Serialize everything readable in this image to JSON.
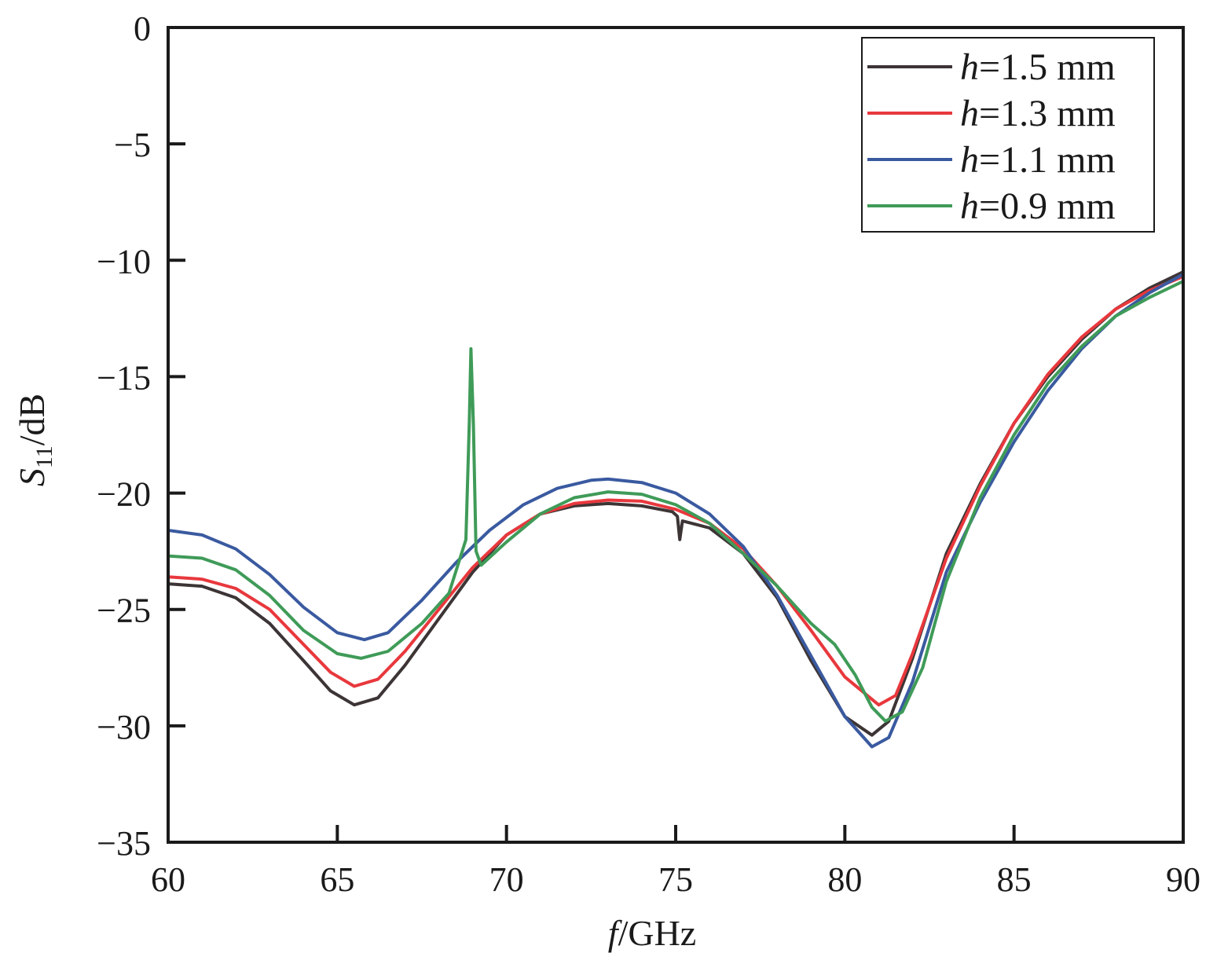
{
  "chart_data": {
    "type": "line",
    "xlabel": {
      "italic": "f",
      "rest": "/GHz"
    },
    "ylabel": {
      "italic": "S",
      "sub": "11",
      "rest": "/dB"
    },
    "xlim": [
      60,
      90
    ],
    "ylim": [
      -35,
      0
    ],
    "xticks": [
      "60",
      "65",
      "70",
      "75",
      "80",
      "85",
      "90"
    ],
    "yticks": [
      "0",
      "−5",
      "−10",
      "−15",
      "−20",
      "−25",
      "−30",
      "−35"
    ],
    "legend_position": "top-right",
    "grid": false,
    "series": [
      {
        "name": "h=1.5 mm",
        "legend_italic": "h",
        "legend_rest": "=1.5 mm",
        "color": "#3d3535",
        "points": [
          [
            60,
            -23.9
          ],
          [
            61,
            -24.0
          ],
          [
            62,
            -24.5
          ],
          [
            63,
            -25.6
          ],
          [
            64,
            -27.2
          ],
          [
            64.8,
            -28.5
          ],
          [
            65.5,
            -29.1
          ],
          [
            66.2,
            -28.8
          ],
          [
            67,
            -27.4
          ],
          [
            68,
            -25.4
          ],
          [
            69,
            -23.4
          ],
          [
            70,
            -21.8
          ],
          [
            71,
            -20.9
          ],
          [
            72,
            -20.55
          ],
          [
            73,
            -20.45
          ],
          [
            74,
            -20.55
          ],
          [
            74.9,
            -20.8
          ],
          [
            75.05,
            -21.0
          ],
          [
            75.12,
            -22.0
          ],
          [
            75.2,
            -21.2
          ],
          [
            76,
            -21.5
          ],
          [
            77,
            -22.6
          ],
          [
            78,
            -24.5
          ],
          [
            79,
            -27.2
          ],
          [
            80,
            -29.6
          ],
          [
            80.8,
            -30.4
          ],
          [
            81.3,
            -29.8
          ],
          [
            82,
            -27.1
          ],
          [
            83,
            -22.6
          ],
          [
            84,
            -19.6
          ],
          [
            85,
            -17.0
          ],
          [
            86,
            -15.0
          ],
          [
            87,
            -13.4
          ],
          [
            88,
            -12.1
          ],
          [
            89,
            -11.2
          ],
          [
            90,
            -10.5
          ]
        ]
      },
      {
        "name": "h=1.3 mm",
        "legend_italic": "h",
        "legend_rest": "=1.3 mm",
        "color": "#e8383d",
        "points": [
          [
            60,
            -23.6
          ],
          [
            61,
            -23.7
          ],
          [
            62,
            -24.1
          ],
          [
            63,
            -25.0
          ],
          [
            64,
            -26.5
          ],
          [
            64.8,
            -27.7
          ],
          [
            65.5,
            -28.3
          ],
          [
            66.2,
            -28.0
          ],
          [
            67,
            -26.8
          ],
          [
            68,
            -25.0
          ],
          [
            69,
            -23.2
          ],
          [
            70,
            -21.8
          ],
          [
            71,
            -20.9
          ],
          [
            72,
            -20.45
          ],
          [
            73,
            -20.3
          ],
          [
            74,
            -20.35
          ],
          [
            75,
            -20.7
          ],
          [
            76,
            -21.3
          ],
          [
            77,
            -22.4
          ],
          [
            78,
            -24.0
          ],
          [
            79,
            -25.9
          ],
          [
            80,
            -27.9
          ],
          [
            81,
            -29.1
          ],
          [
            81.5,
            -28.7
          ],
          [
            82,
            -26.9
          ],
          [
            83,
            -22.8
          ],
          [
            84,
            -19.7
          ],
          [
            85,
            -17.0
          ],
          [
            86,
            -14.9
          ],
          [
            87,
            -13.3
          ],
          [
            88,
            -12.1
          ],
          [
            89,
            -11.3
          ],
          [
            90,
            -10.7
          ]
        ]
      },
      {
        "name": "h=1.1 mm",
        "legend_italic": "h",
        "legend_rest": "=1.1 mm",
        "color": "#3a5aa0",
        "points": [
          [
            60,
            -21.6
          ],
          [
            61,
            -21.8
          ],
          [
            62,
            -22.4
          ],
          [
            63,
            -23.5
          ],
          [
            64,
            -24.9
          ],
          [
            65,
            -26.0
          ],
          [
            65.8,
            -26.3
          ],
          [
            66.5,
            -26.0
          ],
          [
            67.5,
            -24.6
          ],
          [
            68.5,
            -23.0
          ],
          [
            69.5,
            -21.6
          ],
          [
            70.5,
            -20.5
          ],
          [
            71.5,
            -19.8
          ],
          [
            72.5,
            -19.45
          ],
          [
            73,
            -19.4
          ],
          [
            74,
            -19.55
          ],
          [
            75,
            -20.0
          ],
          [
            76,
            -20.9
          ],
          [
            77,
            -22.3
          ],
          [
            78,
            -24.4
          ],
          [
            79,
            -27.0
          ],
          [
            80,
            -29.6
          ],
          [
            80.8,
            -30.9
          ],
          [
            81.3,
            -30.5
          ],
          [
            82,
            -28.1
          ],
          [
            83,
            -23.4
          ],
          [
            84,
            -20.4
          ],
          [
            85,
            -17.8
          ],
          [
            86,
            -15.6
          ],
          [
            87,
            -13.8
          ],
          [
            88,
            -12.4
          ],
          [
            89,
            -11.4
          ],
          [
            90,
            -10.6
          ]
        ]
      },
      {
        "name": "h=0.9 mm",
        "legend_italic": "h",
        "legend_rest": "=0.9 mm",
        "color": "#3f9b58",
        "points": [
          [
            60,
            -22.7
          ],
          [
            61,
            -22.8
          ],
          [
            62,
            -23.3
          ],
          [
            63,
            -24.4
          ],
          [
            64,
            -25.9
          ],
          [
            65,
            -26.9
          ],
          [
            65.7,
            -27.1
          ],
          [
            66.5,
            -26.8
          ],
          [
            67.5,
            -25.6
          ],
          [
            68.3,
            -24.3
          ],
          [
            68.8,
            -22.0
          ],
          [
            68.9,
            -17.0
          ],
          [
            68.95,
            -13.8
          ],
          [
            69.02,
            -17.0
          ],
          [
            69.1,
            -22.5
          ],
          [
            69.25,
            -23.1
          ],
          [
            70,
            -22.1
          ],
          [
            71,
            -20.9
          ],
          [
            72,
            -20.2
          ],
          [
            73,
            -19.95
          ],
          [
            74,
            -20.05
          ],
          [
            75,
            -20.5
          ],
          [
            76,
            -21.3
          ],
          [
            77,
            -22.6
          ],
          [
            78,
            -24.0
          ],
          [
            79,
            -25.6
          ],
          [
            79.7,
            -26.5
          ],
          [
            80.3,
            -27.8
          ],
          [
            80.8,
            -29.2
          ],
          [
            81.2,
            -29.8
          ],
          [
            81.7,
            -29.4
          ],
          [
            82.3,
            -27.5
          ],
          [
            83,
            -23.8
          ],
          [
            84,
            -20.2
          ],
          [
            85,
            -17.5
          ],
          [
            86,
            -15.3
          ],
          [
            87,
            -13.7
          ],
          [
            88,
            -12.4
          ],
          [
            89,
            -11.6
          ],
          [
            90,
            -10.9
          ]
        ]
      }
    ]
  }
}
